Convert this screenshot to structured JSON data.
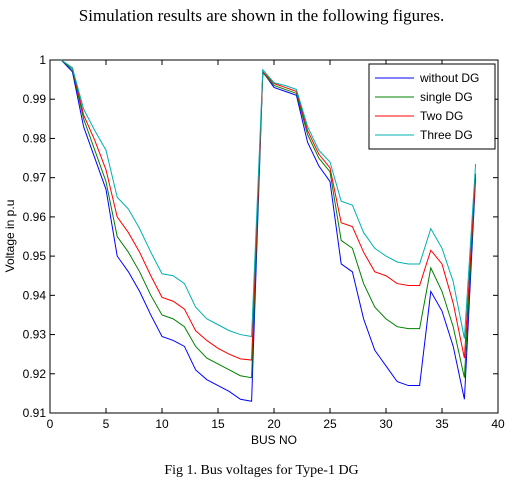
{
  "intro_text": "Simulation results are shown in the following figures.",
  "caption": "Fig 1. Bus voltages for  Type-1 DG",
  "chart_data": {
    "type": "line",
    "title": "",
    "xlabel": "BUS NO",
    "ylabel": "Voltage in p.u",
    "xlim": [
      0,
      40
    ],
    "ylim": [
      0.91,
      1.0
    ],
    "xticks": [
      0,
      5,
      10,
      15,
      20,
      25,
      30,
      35,
      40
    ],
    "yticks": [
      0.91,
      0.92,
      0.93,
      0.94,
      0.95,
      0.96,
      0.97,
      0.98,
      0.99,
      1.0
    ],
    "xtick_labels": [
      "0",
      "5",
      "10",
      "15",
      "20",
      "25",
      "30",
      "35",
      "40"
    ],
    "ytick_labels": [
      "0.91",
      "0.92",
      "0.93",
      "0.94",
      "0.95",
      "0.96",
      "0.97",
      "0.98",
      "0.99",
      "1"
    ],
    "grid": false,
    "legend_position": "top-right",
    "x": [
      1,
      2,
      3,
      4,
      5,
      6,
      7,
      8,
      9,
      10,
      11,
      12,
      13,
      14,
      15,
      16,
      17,
      18,
      19,
      20,
      21,
      22,
      23,
      24,
      25,
      26,
      27,
      28,
      29,
      30,
      31,
      32,
      33,
      34,
      35,
      36,
      37,
      38
    ],
    "series": [
      {
        "name": "without DG",
        "color": "#0000ff",
        "values": [
          1.0,
          0.997,
          0.983,
          0.975,
          0.967,
          0.95,
          0.946,
          0.941,
          0.935,
          0.9295,
          0.9285,
          0.927,
          0.921,
          0.9185,
          0.917,
          0.9155,
          0.9135,
          0.913,
          0.997,
          0.993,
          0.992,
          0.991,
          0.979,
          0.973,
          0.969,
          0.948,
          0.946,
          0.934,
          0.926,
          0.922,
          0.918,
          0.917,
          0.917,
          0.941,
          0.936,
          0.927,
          0.9135,
          0.97
        ]
      },
      {
        "name": "single DG",
        "color": "#008000",
        "values": [
          1.0,
          0.9975,
          0.985,
          0.977,
          0.969,
          0.955,
          0.951,
          0.946,
          0.94,
          0.935,
          0.934,
          0.932,
          0.927,
          0.924,
          0.9225,
          0.921,
          0.9195,
          0.919,
          0.9968,
          0.9935,
          0.9925,
          0.9915,
          0.981,
          0.975,
          0.9715,
          0.954,
          0.952,
          0.943,
          0.937,
          0.934,
          0.932,
          0.9315,
          0.9315,
          0.947,
          0.941,
          0.932,
          0.919,
          0.971
        ]
      },
      {
        "name": "Two DG",
        "color": "#ff0000",
        "values": [
          1.0,
          0.998,
          0.986,
          0.9795,
          0.972,
          0.96,
          0.956,
          0.951,
          0.945,
          0.9395,
          0.9385,
          0.9365,
          0.931,
          0.9285,
          0.9265,
          0.925,
          0.9238,
          0.9235,
          0.997,
          0.994,
          0.993,
          0.992,
          0.982,
          0.976,
          0.9725,
          0.9585,
          0.9575,
          0.951,
          0.946,
          0.945,
          0.943,
          0.9425,
          0.9425,
          0.9515,
          0.948,
          0.938,
          0.924,
          0.971
        ]
      },
      {
        "name": "Three DG",
        "color": "#00b0b0",
        "values": [
          1.0,
          0.998,
          0.9875,
          0.982,
          0.977,
          0.965,
          0.962,
          0.957,
          0.951,
          0.9455,
          0.945,
          0.943,
          0.937,
          0.934,
          0.9325,
          0.931,
          0.93,
          0.9295,
          0.9975,
          0.9942,
          0.9935,
          0.9925,
          0.983,
          0.977,
          0.974,
          0.964,
          0.963,
          0.956,
          0.952,
          0.95,
          0.9485,
          0.948,
          0.948,
          0.957,
          0.952,
          0.9435,
          0.929,
          0.9735
        ]
      }
    ]
  }
}
